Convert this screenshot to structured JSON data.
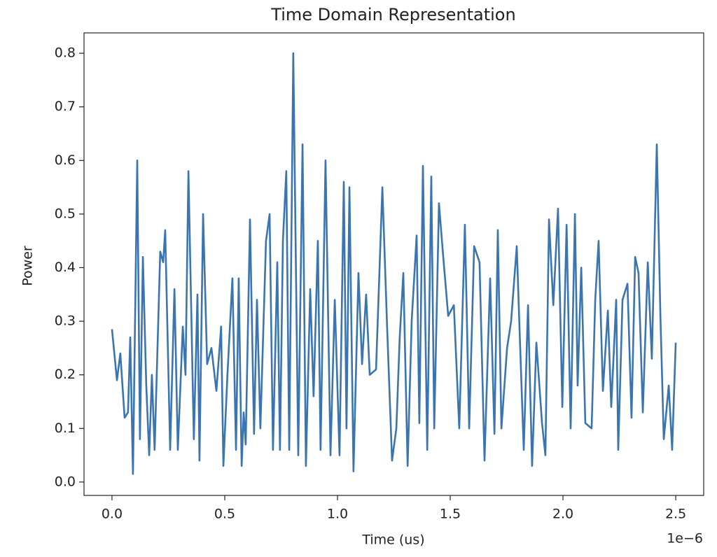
{
  "chart_data": {
    "type": "line",
    "title": "Time Domain Representation",
    "x_label": "Time (us)",
    "y_label": "Power",
    "x_offset_label": "1e−6",
    "color": "#3a75b0",
    "x": [
      0,
      0.022,
      0.037,
      0.056,
      0.071,
      0.081,
      0.093,
      0.112,
      0.124,
      0.137,
      0.152,
      0.165,
      0.177,
      0.189,
      0.214,
      0.227,
      0.236,
      0.258,
      0.277,
      0.292,
      0.314,
      0.326,
      0.339,
      0.363,
      0.379,
      0.388,
      0.404,
      0.422,
      0.441,
      0.463,
      0.484,
      0.494,
      0.512,
      0.534,
      0.55,
      0.562,
      0.575,
      0.584,
      0.593,
      0.612,
      0.63,
      0.643,
      0.658,
      0.683,
      0.699,
      0.714,
      0.733,
      0.745,
      0.758,
      0.773,
      0.786,
      0.804,
      0.826,
      0.845,
      0.86,
      0.879,
      0.894,
      0.913,
      0.925,
      0.947,
      0.969,
      0.988,
      1.009,
      1.028,
      1.04,
      1.053,
      1.071,
      1.093,
      1.109,
      1.127,
      1.143,
      1.171,
      1.199,
      1.22,
      1.242,
      1.261,
      1.276,
      1.292,
      1.311,
      1.329,
      1.351,
      1.363,
      1.379,
      1.398,
      1.416,
      1.429,
      1.45,
      1.469,
      1.491,
      1.516,
      1.54,
      1.565,
      1.584,
      1.606,
      1.63,
      1.652,
      1.677,
      1.696,
      1.711,
      1.727,
      1.752,
      1.77,
      1.795,
      1.807,
      1.826,
      1.845,
      1.863,
      1.882,
      1.907,
      1.922,
      1.938,
      1.957,
      1.978,
      1.997,
      2.016,
      2.034,
      2.053,
      2.065,
      2.081,
      2.099,
      2.127,
      2.143,
      2.158,
      2.177,
      2.199,
      2.214,
      2.236,
      2.245,
      2.264,
      2.286,
      2.304,
      2.32,
      2.335,
      2.354,
      2.376,
      2.394,
      2.416,
      2.432,
      2.447,
      2.469,
      2.484,
      2.5
    ],
    "values": [
      0.285,
      0.19,
      0.24,
      0.12,
      0.13,
      0.27,
      0.015,
      0.6,
      0.08,
      0.42,
      0.18,
      0.05,
      0.2,
      0.06,
      0.43,
      0.41,
      0.47,
      0.06,
      0.36,
      0.06,
      0.29,
      0.2,
      0.58,
      0.08,
      0.35,
      0.04,
      0.5,
      0.22,
      0.25,
      0.17,
      0.29,
      0.03,
      0.2,
      0.38,
      0.06,
      0.38,
      0.03,
      0.13,
      0.07,
      0.49,
      0.09,
      0.34,
      0.1,
      0.45,
      0.5,
      0.06,
      0.41,
      0.06,
      0.45,
      0.58,
      0.06,
      0.8,
      0.05,
      0.63,
      0.03,
      0.36,
      0.16,
      0.45,
      0.06,
      0.6,
      0.05,
      0.34,
      0.05,
      0.56,
      0.1,
      0.55,
      0.02,
      0.39,
      0.22,
      0.35,
      0.2,
      0.21,
      0.55,
      0.29,
      0.04,
      0.1,
      0.27,
      0.39,
      0.03,
      0.3,
      0.46,
      0.11,
      0.59,
      0.06,
      0.57,
      0.1,
      0.52,
      0.42,
      0.31,
      0.33,
      0.1,
      0.48,
      0.1,
      0.44,
      0.41,
      0.04,
      0.38,
      0.09,
      0.47,
      0.1,
      0.25,
      0.3,
      0.44,
      0.29,
      0.06,
      0.33,
      0.03,
      0.26,
      0.11,
      0.05,
      0.49,
      0.33,
      0.51,
      0.14,
      0.48,
      0.1,
      0.5,
      0.18,
      0.4,
      0.11,
      0.1,
      0.34,
      0.45,
      0.17,
      0.32,
      0.14,
      0.34,
      0.06,
      0.34,
      0.37,
      0.12,
      0.42,
      0.39,
      0.13,
      0.41,
      0.23,
      0.63,
      0.31,
      0.08,
      0.18,
      0.06,
      0.26
    ],
    "xlim": [
      -0.124,
      2.624
    ],
    "ylim": [
      -0.025,
      0.838
    ],
    "xticks": [
      {
        "value": 0,
        "label": "0.0"
      },
      0.5,
      {
        "value": 1,
        "label": "1.0"
      },
      1.5,
      {
        "value": 2,
        "label": "2.0"
      },
      2.5
    ],
    "yticks": [
      {
        "value": 0,
        "label": "0.0"
      },
      0.1,
      0.2,
      0.3,
      0.4,
      0.5,
      0.6,
      0.7,
      0.8
    ]
  }
}
